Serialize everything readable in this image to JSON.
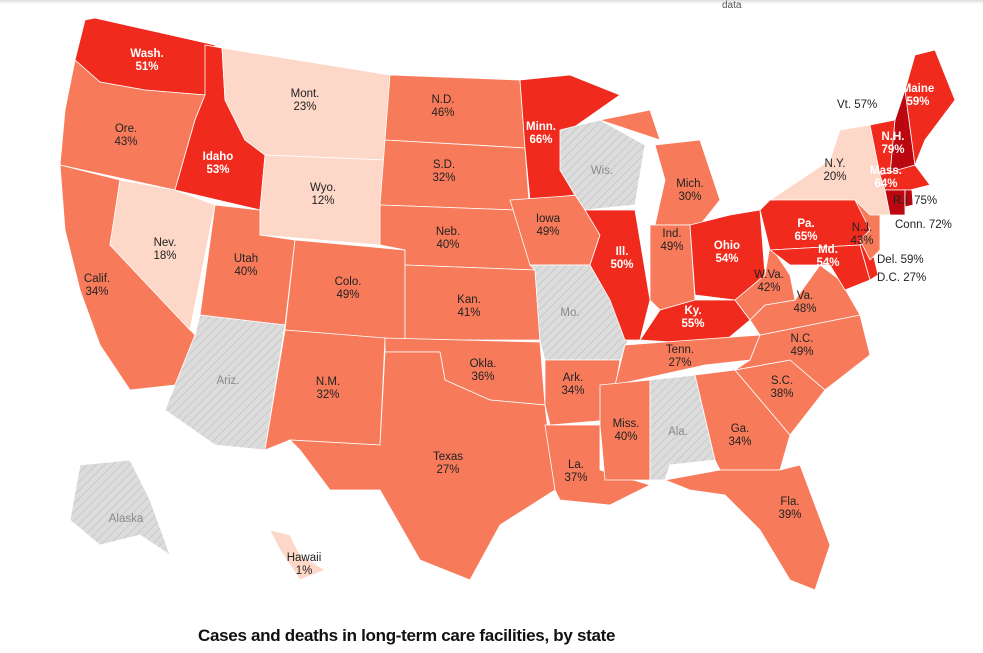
{
  "header": {
    "link_text": "data"
  },
  "title": "Cases and deaths in long-term care facilities, by state",
  "colors": {
    "low": "#fdd7c7",
    "mid": "#f77b5b",
    "high": "#f02a1d",
    "very_high": "#bb0810",
    "no_data": "#dcdcdc"
  },
  "states": [
    {
      "id": "WA",
      "label": "Wash.",
      "value": "51%",
      "level": "high"
    },
    {
      "id": "OR",
      "label": "Ore.",
      "value": "43%",
      "level": "mid"
    },
    {
      "id": "CA",
      "label": "Calif.",
      "value": "34%",
      "level": "mid"
    },
    {
      "id": "NV",
      "label": "Nev.",
      "value": "18%",
      "level": "low"
    },
    {
      "id": "ID",
      "label": "Idaho",
      "value": "53%",
      "level": "high"
    },
    {
      "id": "MT",
      "label": "Mont.",
      "value": "23%",
      "level": "low"
    },
    {
      "id": "WY",
      "label": "Wyo.",
      "value": "12%",
      "level": "low"
    },
    {
      "id": "UT",
      "label": "Utah",
      "value": "40%",
      "level": "mid"
    },
    {
      "id": "AZ",
      "label": "Ariz.",
      "value": "",
      "level": "no_data"
    },
    {
      "id": "CO",
      "label": "Colo.",
      "value": "49%",
      "level": "mid"
    },
    {
      "id": "NM",
      "label": "N.M.",
      "value": "32%",
      "level": "mid"
    },
    {
      "id": "ND",
      "label": "N.D.",
      "value": "46%",
      "level": "mid"
    },
    {
      "id": "SD",
      "label": "S.D.",
      "value": "32%",
      "level": "mid"
    },
    {
      "id": "NE",
      "label": "Neb.",
      "value": "40%",
      "level": "mid"
    },
    {
      "id": "KS",
      "label": "Kan.",
      "value": "41%",
      "level": "mid"
    },
    {
      "id": "OK",
      "label": "Okla.",
      "value": "36%",
      "level": "mid"
    },
    {
      "id": "TX",
      "label": "Texas",
      "value": "27%",
      "level": "mid"
    },
    {
      "id": "MN",
      "label": "Minn.",
      "value": "66%",
      "level": "high"
    },
    {
      "id": "IA",
      "label": "Iowa",
      "value": "49%",
      "level": "mid"
    },
    {
      "id": "MO",
      "label": "Mo.",
      "value": "",
      "level": "no_data"
    },
    {
      "id": "AR",
      "label": "Ark.",
      "value": "34%",
      "level": "mid"
    },
    {
      "id": "LA",
      "label": "La.",
      "value": "37%",
      "level": "mid"
    },
    {
      "id": "WI",
      "label": "Wis.",
      "value": "",
      "level": "no_data"
    },
    {
      "id": "IL",
      "label": "Ill.",
      "value": "50%",
      "level": "high"
    },
    {
      "id": "MI",
      "label": "Mich.",
      "value": "30%",
      "level": "mid"
    },
    {
      "id": "IN",
      "label": "Ind.",
      "value": "49%",
      "level": "mid"
    },
    {
      "id": "OH",
      "label": "Ohio",
      "value": "54%",
      "level": "high"
    },
    {
      "id": "KY",
      "label": "Ky.",
      "value": "55%",
      "level": "high"
    },
    {
      "id": "TN",
      "label": "Tenn.",
      "value": "27%",
      "level": "mid"
    },
    {
      "id": "MS",
      "label": "Miss.",
      "value": "40%",
      "level": "mid"
    },
    {
      "id": "AL",
      "label": "Ala.",
      "value": "",
      "level": "no_data"
    },
    {
      "id": "GA",
      "label": "Ga.",
      "value": "34%",
      "level": "mid"
    },
    {
      "id": "FL",
      "label": "Fla.",
      "value": "39%",
      "level": "mid"
    },
    {
      "id": "SC",
      "label": "S.C.",
      "value": "38%",
      "level": "mid"
    },
    {
      "id": "NC",
      "label": "N.C.",
      "value": "49%",
      "level": "mid"
    },
    {
      "id": "VA",
      "label": "Va.",
      "value": "48%",
      "level": "mid"
    },
    {
      "id": "WV",
      "label": "W.Va.",
      "value": "42%",
      "level": "mid"
    },
    {
      "id": "PA",
      "label": "Pa.",
      "value": "65%",
      "level": "high"
    },
    {
      "id": "MD",
      "label": "Md.",
      "value": "54%",
      "level": "high"
    },
    {
      "id": "DE",
      "label": "Del.",
      "value": "59%",
      "level": "high"
    },
    {
      "id": "NJ",
      "label": "N.J.",
      "value": "43%",
      "level": "mid"
    },
    {
      "id": "NY",
      "label": "N.Y.",
      "value": "20%",
      "level": "low"
    },
    {
      "id": "VT",
      "label": "Vt.",
      "value": "57%",
      "level": "high"
    },
    {
      "id": "NH",
      "label": "N.H.",
      "value": "79%",
      "level": "very_high"
    },
    {
      "id": "ME",
      "label": "Maine",
      "value": "59%",
      "level": "high"
    },
    {
      "id": "MA",
      "label": "Mass.",
      "value": "64%",
      "level": "high"
    },
    {
      "id": "CT",
      "label": "Conn.",
      "value": "72%",
      "level": "very_high"
    },
    {
      "id": "RI",
      "label": "R.I.",
      "value": "75%",
      "level": "very_high"
    },
    {
      "id": "DC",
      "label": "D.C.",
      "value": "27%",
      "level": "mid"
    },
    {
      "id": "AK",
      "label": "Alaska",
      "value": "",
      "level": "no_data"
    },
    {
      "id": "HI",
      "label": "Hawaii",
      "value": "1%",
      "level": "low"
    }
  ]
}
